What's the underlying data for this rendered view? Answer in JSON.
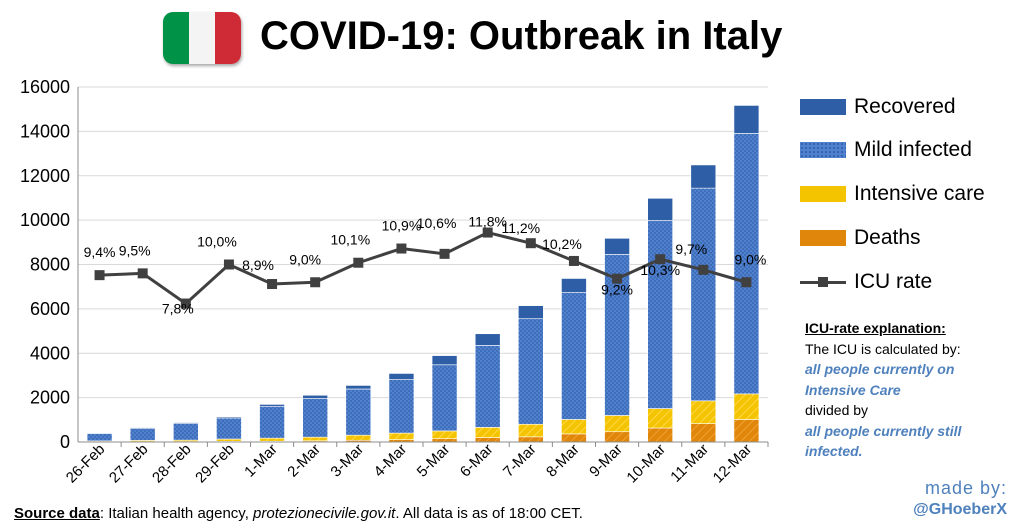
{
  "header": {
    "title": "COVID-19: Outbreak in Italy",
    "flag_colors": [
      "#009246",
      "#f4f4f4",
      "#ce2b37"
    ]
  },
  "legend": {
    "recovered": "Recovered",
    "mild": "Mild infected",
    "intensive": "Intensive care",
    "deaths": "Deaths",
    "icu": "ICU rate"
  },
  "explanation": {
    "heading": "ICU-rate explanation:",
    "line1": "The ICU is calculated by:",
    "emph1": "all people currently on Intensive Care",
    "line2": "divided by",
    "emph2": "all people currently still infected."
  },
  "madeby": {
    "label": "made by:",
    "handle": "@GHoeberX"
  },
  "source": {
    "label": "Source data",
    "text1": ": Italian health agency, ",
    "site": "protezionecivile.gov.it",
    "text2": ". All data is as of 18:00 CET."
  },
  "colors": {
    "recovered": "#2e5ea6",
    "mild": "#4f81d1",
    "intensive": "#f5c400",
    "deaths": "#e0860b",
    "icu": "#404040",
    "grid": "#d9d9d9"
  },
  "chart_data": {
    "type": "bar",
    "stacked": true,
    "categories": [
      "26-Feb",
      "27-Feb",
      "28-Feb",
      "29-Feb",
      "1-Mar",
      "2-Mar",
      "3-Mar",
      "4-Mar",
      "5-Mar",
      "6-Mar",
      "7-Mar",
      "8-Mar",
      "9-Mar",
      "10-Mar",
      "11-Mar",
      "12-Mar"
    ],
    "ylim": [
      0,
      16000
    ],
    "yticks": [
      0,
      2000,
      4000,
      6000,
      8000,
      10000,
      12000,
      14000,
      16000
    ],
    "grid": true,
    "series": [
      {
        "name": "Deaths",
        "values": [
          12,
          17,
          21,
          29,
          34,
          52,
          79,
          107,
          148,
          197,
          233,
          366,
          463,
          631,
          827,
          1016
        ]
      },
      {
        "name": "Intensive care",
        "values": [
          36,
          56,
          64,
          105,
          140,
          166,
          229,
          295,
          351,
          462,
          567,
          650,
          733,
          877,
          1028,
          1153
        ]
      },
      {
        "name": "Mild infected",
        "values": [
          337,
          530,
          744,
          950,
          1437,
          1740,
          2081,
          2411,
          2981,
          3697,
          4756,
          5732,
          7261,
          8472,
          9587,
          11742
        ]
      },
      {
        "name": "Recovered",
        "values": [
          3,
          45,
          46,
          50,
          83,
          149,
          160,
          276,
          414,
          523,
          589,
          622,
          724,
          1004,
          1045,
          1258
        ]
      }
    ],
    "line_series": {
      "name": "ICU rate",
      "values": [
        9.4,
        9.5,
        7.8,
        10.0,
        8.9,
        9.0,
        10.1,
        10.9,
        10.6,
        11.8,
        11.2,
        10.2,
        9.2,
        10.3,
        9.7,
        9.0
      ],
      "labels": [
        "9,4%",
        "9,5%",
        "7,8%",
        "10,0%",
        "8,9%",
        "9,0%",
        "10,1%",
        "10,9%",
        "10,6%",
        "11,8%",
        "11,2%",
        "10,2%",
        "9,2%",
        "10,3%",
        "9,7%",
        "9,0%"
      ],
      "scale_note": "plotted against primary axis as rate × 800"
    }
  }
}
